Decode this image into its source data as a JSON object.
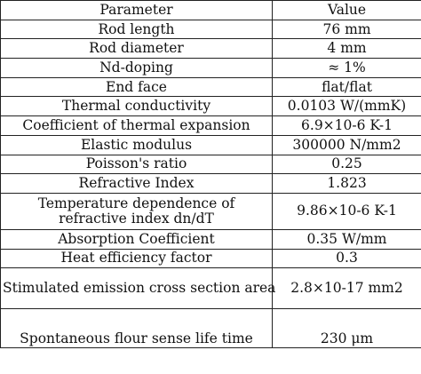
{
  "table": {
    "header": {
      "parameter": "Parameter",
      "value": "Value"
    },
    "rows": [
      {
        "parameter": "Rod length",
        "value": "76 mm"
      },
      {
        "parameter": "Rod diameter",
        "value": "4 mm"
      },
      {
        "parameter": "Nd-doping",
        "value": "≈ 1%"
      },
      {
        "parameter": "End face",
        "value": "flat/flat"
      },
      {
        "parameter": "Thermal conductivity",
        "value": "0.0103 W/(mmK)"
      },
      {
        "parameter": "Coefficient of thermal expansion",
        "value": "6.9×10-6 K-1"
      },
      {
        "parameter": "Elastic modulus",
        "value": "300000 N/mm2"
      },
      {
        "parameter": "Poisson's ratio",
        "value": "0.25"
      },
      {
        "parameter": "Refractive Index",
        "value": "1.823"
      },
      {
        "parameter": "Temperature dependence of refractive index dn/dT",
        "value": "9.86×10-6 K-1"
      },
      {
        "parameter": "Absorption Coefficient",
        "value": "0.35 W/mm"
      },
      {
        "parameter": "Heat efficiency factor",
        "value": "0.3"
      },
      {
        "parameter": "Stimulated emission cross section area",
        "value": "2.8×10-17 mm2"
      },
      {
        "parameter": "Spontaneous flour sense life time",
        "value": "230 μm"
      }
    ]
  }
}
